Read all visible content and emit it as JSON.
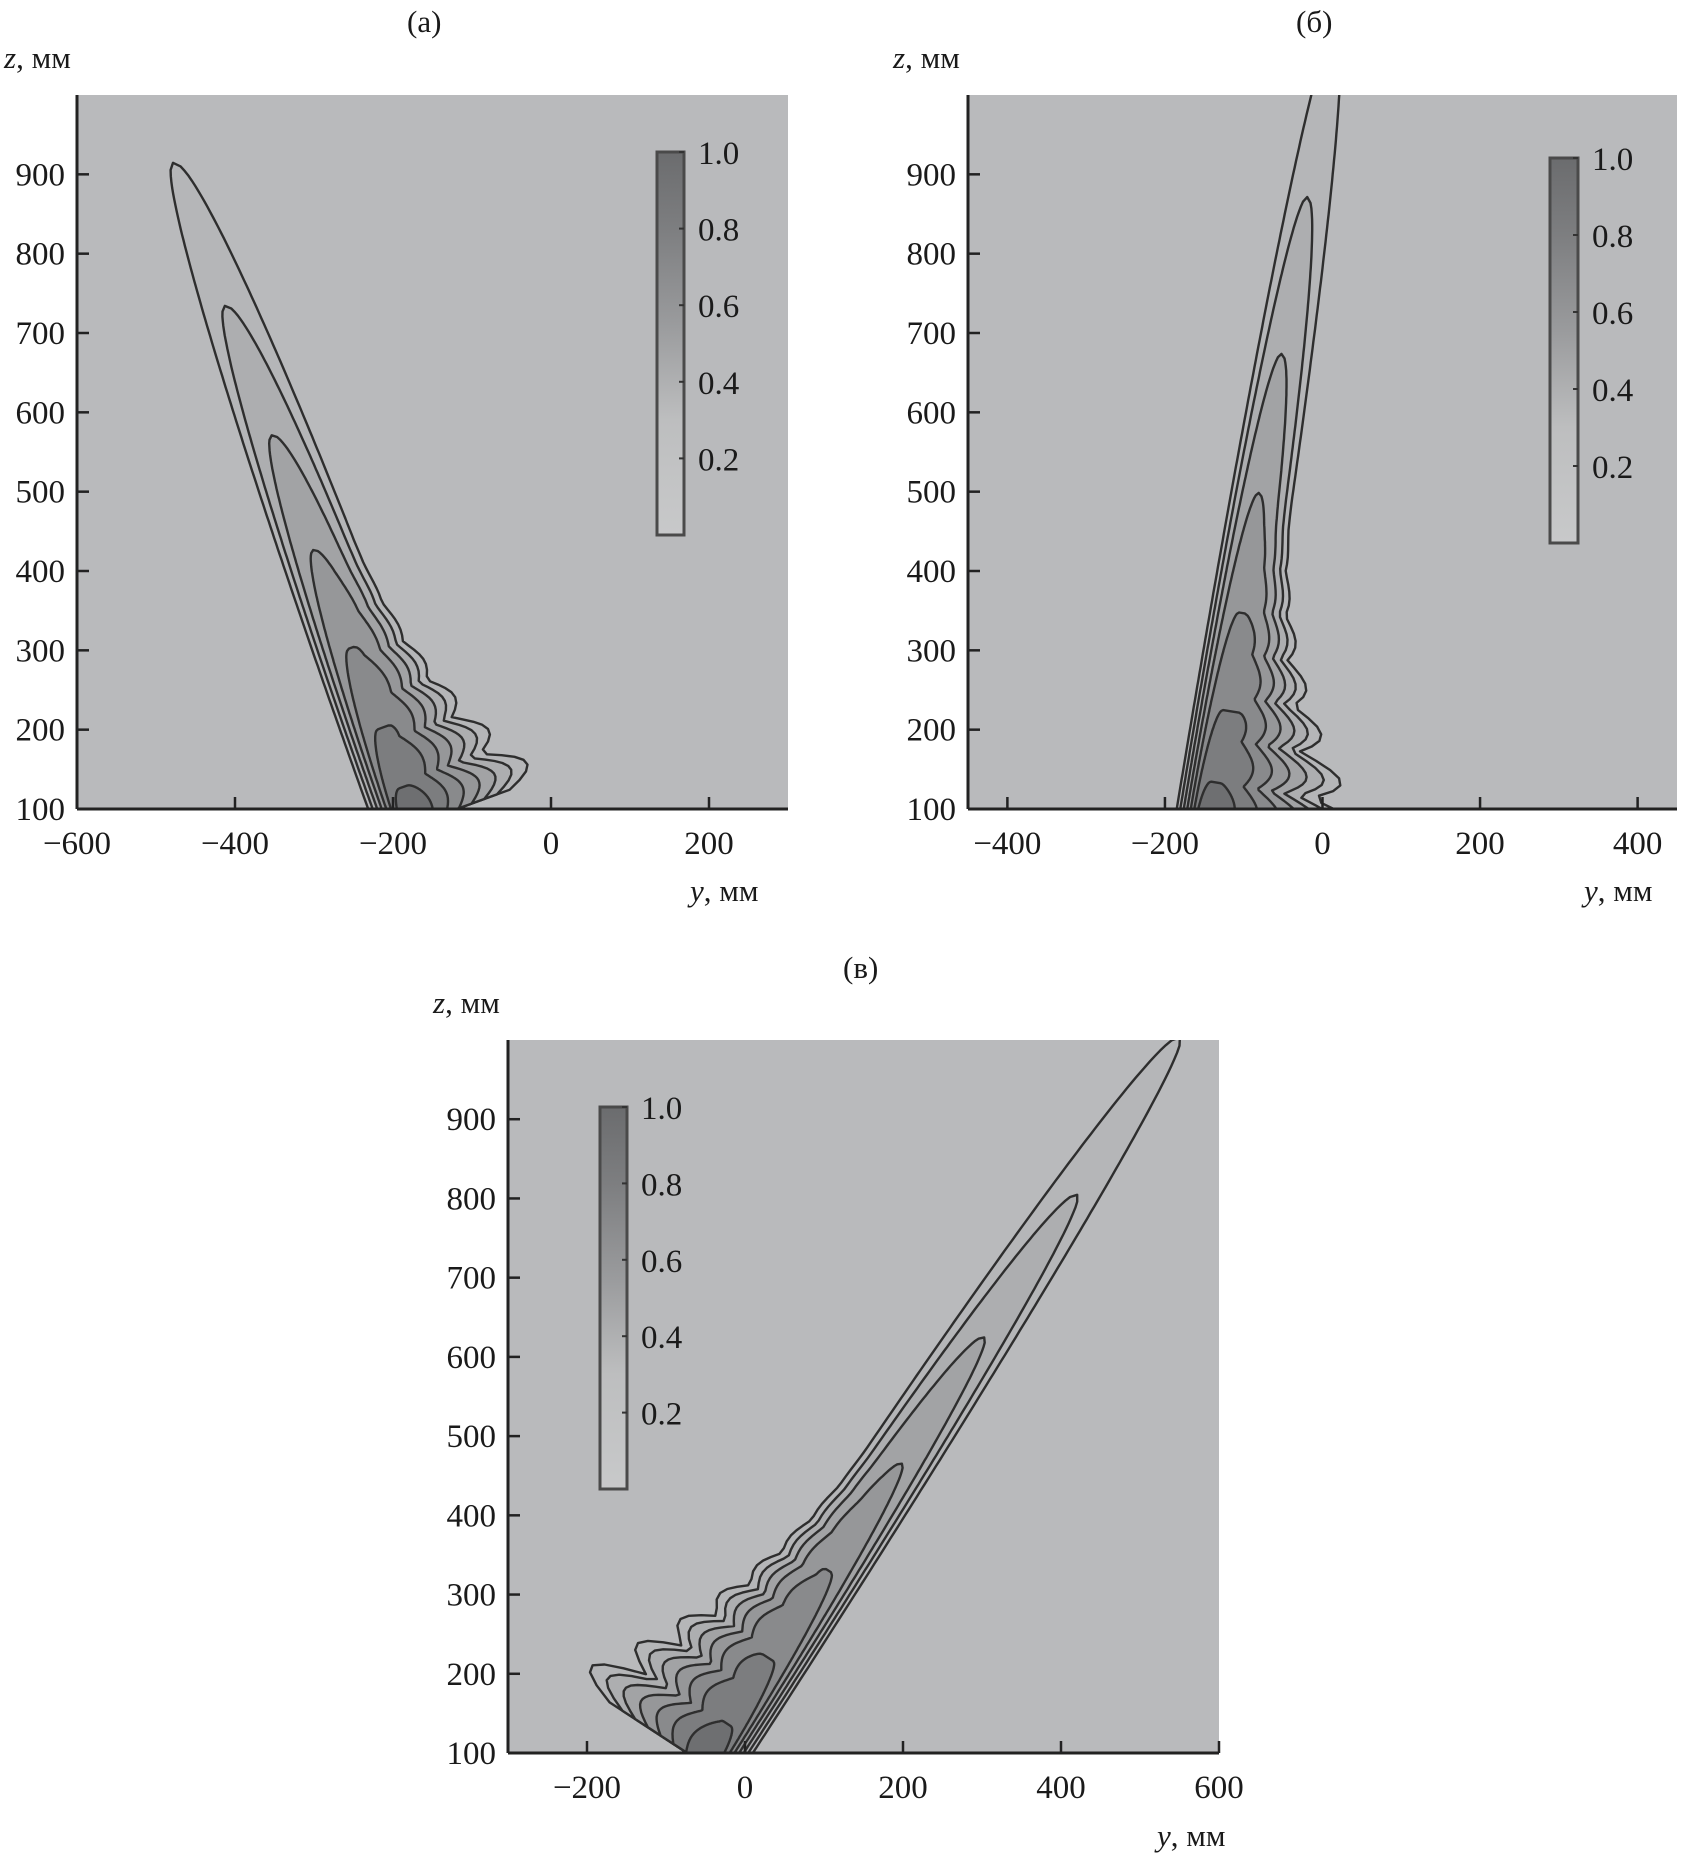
{
  "chart_data": [
    {
      "type": "heatmap",
      "subtype": "contour",
      "title": "(a)",
      "xlabel_var": "y",
      "xlabel_unit": ", мм",
      "ylabel_var": "z",
      "ylabel_unit": ", мм",
      "xlim": [
        -600,
        300
      ],
      "ylim": [
        100,
        1000
      ],
      "xticks": [
        -600,
        -400,
        -200,
        0,
        200
      ],
      "yticks": [
        100,
        200,
        300,
        400,
        500,
        600,
        700,
        800,
        900
      ],
      "colorbar": {
        "range": [
          0,
          1
        ],
        "ticks": [
          "0.2",
          "0.4",
          "0.6",
          "0.8",
          "1.0"
        ],
        "placement": "top-right"
      },
      "beam": {
        "base": [
          -175,
          80
        ],
        "tip": [
          -475,
          905
        ],
        "half_width": 55,
        "fan_side": 1,
        "fan_extent": 110,
        "levels": 7
      }
    },
    {
      "type": "heatmap",
      "subtype": "contour",
      "title": "(б)",
      "xlabel_var": "y",
      "xlabel_unit": ", мм",
      "ylabel_var": "z",
      "ylabel_unit": ", мм",
      "xlim": [
        -450,
        450
      ],
      "ylim": [
        100,
        1000
      ],
      "xticks": [
        -400,
        -200,
        0,
        200,
        400
      ],
      "yticks": [
        100,
        200,
        300,
        400,
        500,
        600,
        700,
        800,
        900
      ],
      "colorbar": {
        "range": [
          0,
          1
        ],
        "ticks": [
          "0.2",
          "0.4",
          "0.6",
          "0.8",
          "1.0"
        ],
        "placement": "top-right"
      },
      "beam": {
        "base": [
          -150,
          80
        ],
        "tip": [
          15,
          1080
        ],
        "half_width": 45,
        "fan_side": 1,
        "fan_extent": 160,
        "levels": 7
      }
    },
    {
      "type": "heatmap",
      "subtype": "contour",
      "title": "(в)",
      "xlabel_var": "y",
      "xlabel_unit": ", мм",
      "ylabel_var": "z",
      "ylabel_unit": ", мм",
      "xlim": [
        -300,
        600
      ],
      "ylim": [
        100,
        1000
      ],
      "xticks": [
        -200,
        0,
        200,
        400,
        600
      ],
      "yticks": [
        100,
        200,
        300,
        400,
        500,
        600,
        700,
        800,
        900
      ],
      "colorbar": {
        "range": [
          0,
          1
        ],
        "ticks": [
          "0.2",
          "0.4",
          "0.6",
          "0.8",
          "1.0"
        ],
        "placement": "top-left"
      },
      "beam": {
        "base": [
          -50,
          85
        ],
        "tip": [
          545,
          995
        ],
        "half_width": 50,
        "fan_side": -1,
        "fan_extent": 140,
        "levels": 7
      }
    }
  ]
}
